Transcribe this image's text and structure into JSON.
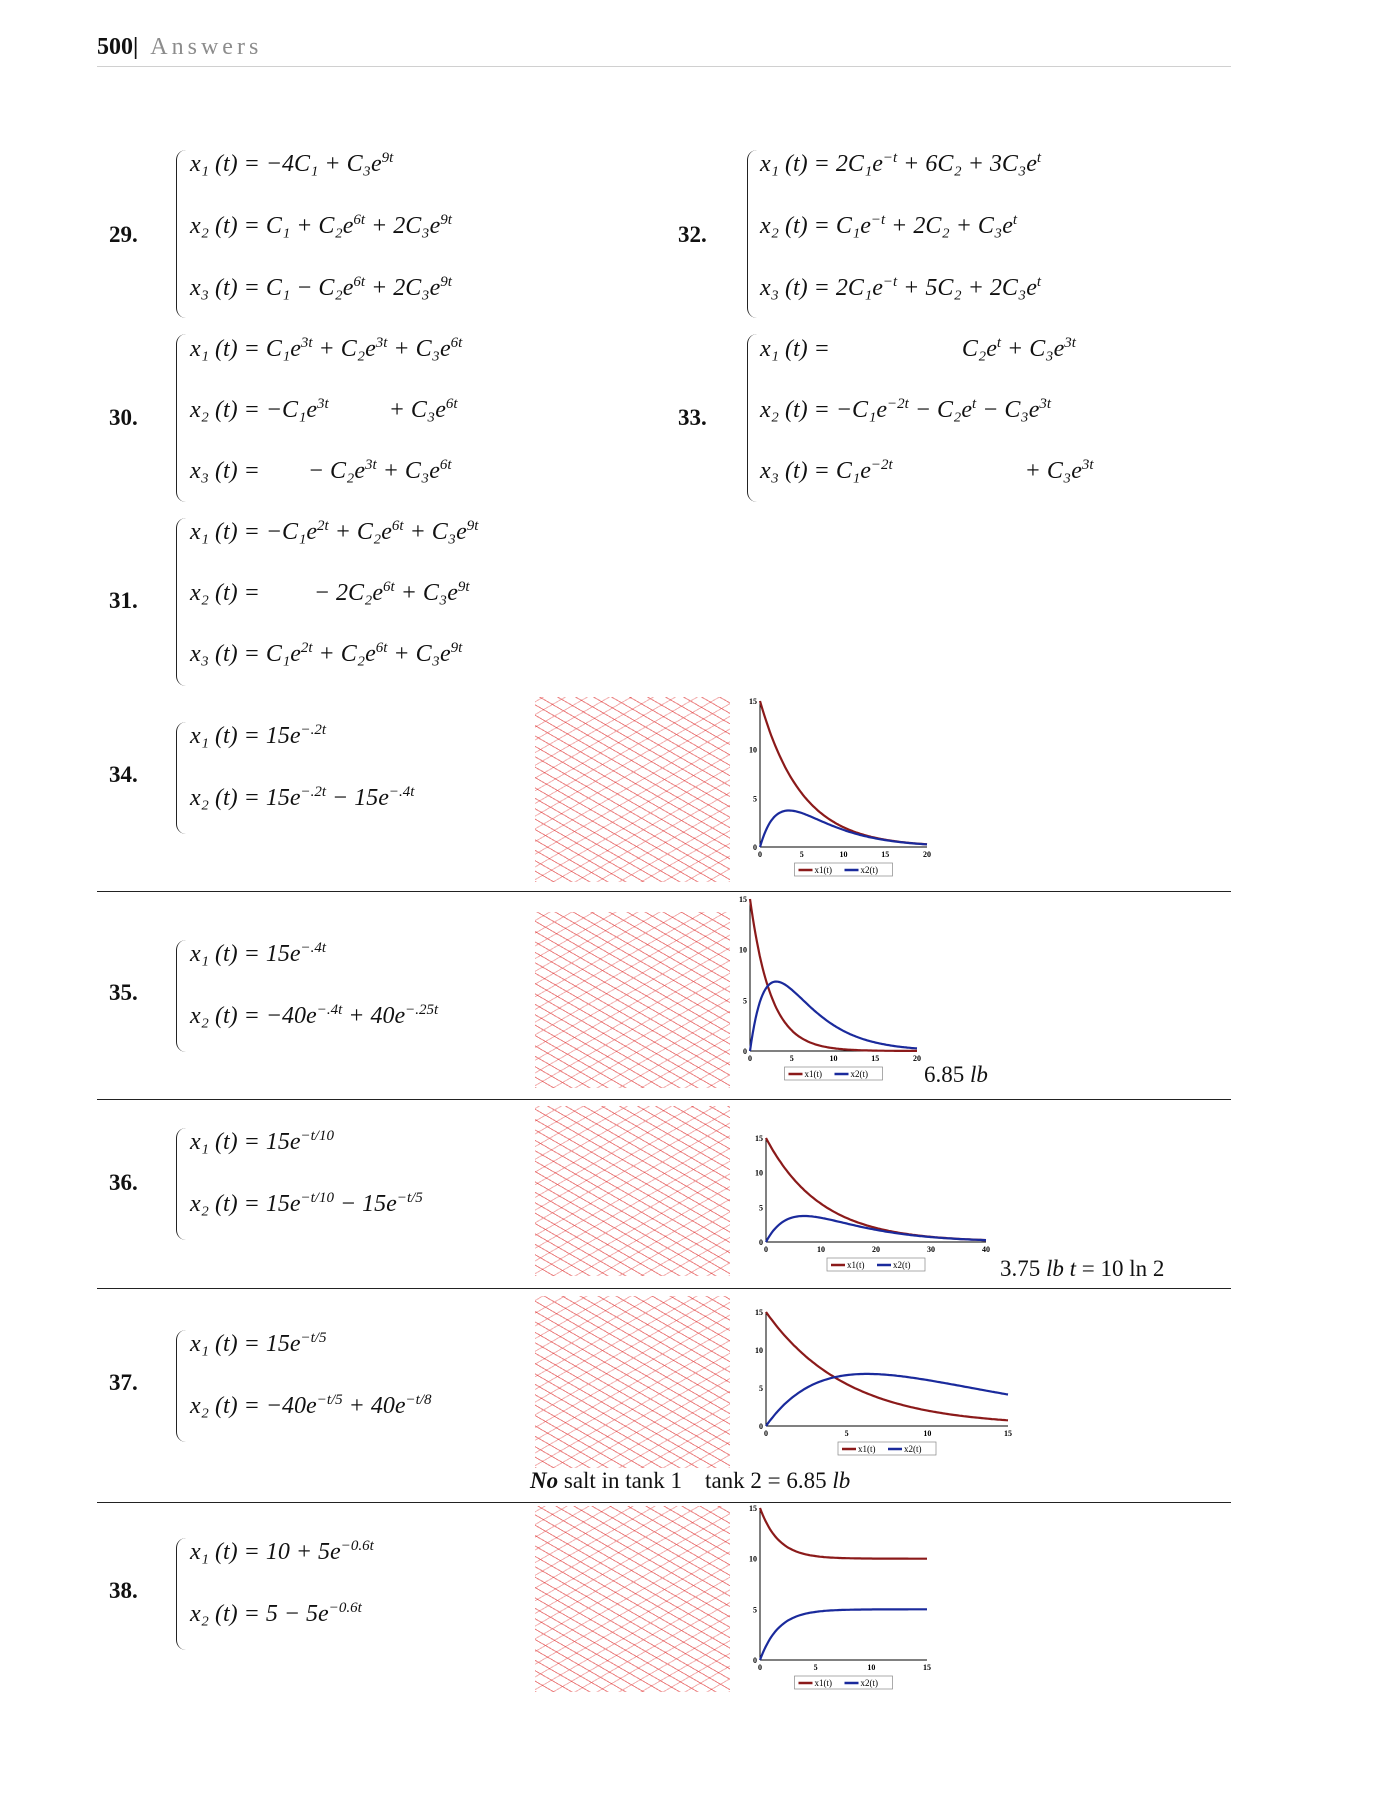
{
  "header": {
    "page_number": "500|",
    "section": "Answers"
  },
  "problems": [
    {
      "label": "29.",
      "lines": [
        "x₁ (t) = −4C₁ + C₃e<sup>9t</sup>",
        "x₂ (t) = C₁ + C₂e<sup>6t</sup> + 2C₃e<sup>9t</sup>",
        "x₃ (t) = C₁ − C₂e<sup>6t</sup> + 2C₃e<sup>9t</sup>"
      ]
    },
    {
      "label": "30.",
      "lines": [
        "x₁ (t) = C₁e<sup>3t</sup> + C₂e<sup>3t</sup> + C₃e<sup>6t</sup>",
        "x₂ (t) = −C₁e<sup>3t</sup> &nbsp;&nbsp;&nbsp;&nbsp;&nbsp;&nbsp;&nbsp;&nbsp; + C₃e<sup>6t</sup>",
        "x₃ (t) = &nbsp;&nbsp;&nbsp;&nbsp;&nbsp;&nbsp; − C₂e<sup>3t</sup> + C₃e<sup>6t</sup>"
      ]
    },
    {
      "label": "31.",
      "lines": [
        "x₁ (t) = −C₁e<sup>2t</sup> + C₂e<sup>6t</sup> + C₃e<sup>9t</sup>",
        "x₂ (t) = &nbsp;&nbsp;&nbsp;&nbsp;&nbsp;&nbsp;&nbsp; − 2C₂e<sup>6t</sup> + C₃e<sup>9t</sup>",
        "x₃ (t) = C₁e<sup>2t</sup> + C₂e<sup>6t</sup> + C₃e<sup>9t</sup>"
      ]
    },
    {
      "label": "32.",
      "lines": [
        "x₁ (t) = 2C₁e<sup>−t</sup> + 6C₂ + 3C₃e<sup>t</sup>",
        "x₂ (t) = C₁e<sup>−t</sup> + 2C₂ + C₃e<sup>t</sup>",
        "x₃ (t) = 2C₁e<sup>−t</sup> + 5C₂ + 2C₃e<sup>t</sup>"
      ]
    },
    {
      "label": "33.",
      "lines": [
        "x₁ (t) = &nbsp;&nbsp;&nbsp;&nbsp;&nbsp;&nbsp;&nbsp;&nbsp;&nbsp;&nbsp;&nbsp;&nbsp;&nbsp;&nbsp;&nbsp;&nbsp;&nbsp;&nbsp;&nbsp;&nbsp; C₂e<sup>t</sup> + C₃e<sup>3t</sup>",
        "x₂ (t) = −C₁e<sup>−2t</sup> − C₂e<sup>t</sup> − C₃e<sup>3t</sup>",
        "x₃ (t) = C₁e<sup>−2t</sup> &nbsp;&nbsp;&nbsp;&nbsp;&nbsp;&nbsp;&nbsp;&nbsp;&nbsp;&nbsp;&nbsp;&nbsp;&nbsp;&nbsp;&nbsp;&nbsp;&nbsp;&nbsp;&nbsp;&nbsp; + C₃e<sup>3t</sup>"
      ]
    },
    {
      "label": "34.",
      "lines": [
        "x₁ (t) = 15e<sup>−.2t</sup>",
        "x₂ (t) = 15e<sup>−.2t</sup> − 15e<sup>−.4t</sup>"
      ]
    },
    {
      "label": "35.",
      "lines": [
        "x₁ (t) = 15e<sup>−.4t</sup>",
        "x₂ (t) = −40e<sup>−.4t</sup> + 40e<sup>−.25t</sup>"
      ],
      "note": "6.85 <i>lb</i>"
    },
    {
      "label": "36.",
      "lines": [
        "x₁ (t) = 15e<sup>−t/10</sup>",
        "x₂ (t) = 15e<sup>−t/10</sup> − 15e<sup>−t/5</sup>"
      ],
      "note": "3.75 <i>lb t</i> = 10 ln 2"
    },
    {
      "label": "37.",
      "lines": [
        "x₁ (t) = 15e<sup>−t/5</sup>",
        "x₂ (t) = −40e<sup>−t/5</sup> + 40e<sup>−t/8</sup>"
      ],
      "note": "<b>No</b> salt in tank 1 &nbsp;&nbsp; tank 2 = 6.85 <i>lb</i>"
    },
    {
      "label": "38.",
      "lines": [
        "x₁ (t) = 10 + 5e<sup>−0.6t</sup>",
        "x₂ (t) = 5 − 5e<sup>−0.6t</sup>"
      ]
    }
  ],
  "legend": {
    "x1": "x1(t)",
    "x2": "x2(t)"
  },
  "colors": {
    "x1": "#8b1a1a",
    "x2": "#1a2a9c",
    "field": "#dd2222"
  },
  "chart_data": [
    {
      "id": "34",
      "type": "line",
      "xlim": [
        0,
        20
      ],
      "ylim": [
        0,
        15
      ],
      "xticks": [
        0,
        5,
        10,
        15,
        20
      ],
      "yticks": [
        0,
        5,
        10,
        15
      ],
      "series": [
        {
          "name": "x1(t)",
          "expr": "15*exp(-0.2*t)"
        },
        {
          "name": "x2(t)",
          "expr": "15*exp(-0.2*t)-15*exp(-0.4*t)"
        }
      ]
    },
    {
      "id": "35",
      "type": "line",
      "xlim": [
        0,
        20
      ],
      "ylim": [
        0,
        15
      ],
      "xticks": [
        0,
        5,
        10,
        15,
        20
      ],
      "yticks": [
        0,
        5,
        10,
        15
      ],
      "series": [
        {
          "name": "x1(t)",
          "expr": "15*exp(-0.4*t)"
        },
        {
          "name": "x2(t)",
          "expr": "-40*exp(-0.4*t)+40*exp(-0.25*t)"
        }
      ]
    },
    {
      "id": "36",
      "type": "line",
      "xlim": [
        0,
        40
      ],
      "ylim": [
        0,
        15
      ],
      "xticks": [
        0,
        10,
        20,
        30,
        40
      ],
      "yticks": [
        0,
        5,
        10,
        15
      ],
      "series": [
        {
          "name": "x1(t)",
          "expr": "15*exp(-t/10)"
        },
        {
          "name": "x2(t)",
          "expr": "15*exp(-t/10)-15*exp(-t/5)"
        }
      ]
    },
    {
      "id": "37",
      "type": "line",
      "xlim": [
        0,
        15
      ],
      "ylim": [
        0,
        15
      ],
      "xticks": [
        0,
        5,
        10,
        15
      ],
      "yticks": [
        0,
        5,
        10,
        15
      ],
      "series": [
        {
          "name": "x1(t)",
          "expr": "15*exp(-t/5)"
        },
        {
          "name": "x2(t)",
          "expr": "-40*exp(-t/5)+40*exp(-t/8)"
        }
      ]
    },
    {
      "id": "38",
      "type": "line",
      "xlim": [
        0,
        15
      ],
      "ylim": [
        0,
        15
      ],
      "xticks": [
        0,
        5,
        10,
        15
      ],
      "yticks": [
        0,
        5,
        10,
        15
      ],
      "series": [
        {
          "name": "x1(t)",
          "expr": "10+5*exp(-0.6*t)"
        },
        {
          "name": "x2(t)",
          "expr": "5-5*exp(-0.6*t)"
        }
      ]
    }
  ]
}
